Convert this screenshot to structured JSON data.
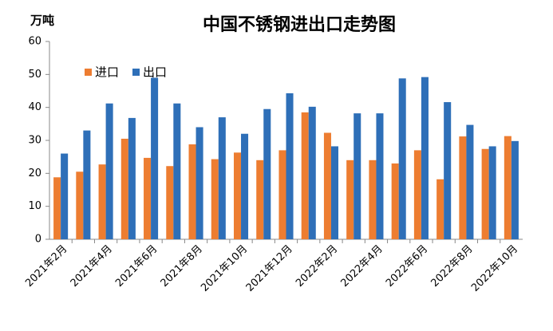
{
  "chart_data": {
    "type": "bar",
    "title": "中国不锈钢进出口走势图",
    "y_unit": "万吨",
    "categories": [
      "2021年2月",
      null,
      "2021年4月",
      null,
      "2021年6月",
      null,
      "2021年8月",
      null,
      "2021年10月",
      null,
      "2021年12月",
      null,
      "2022年2月",
      null,
      "2022年4月",
      null,
      "2022年6月",
      null,
      "2022年8月",
      null,
      "2022年10月"
    ],
    "series": [
      {
        "name": "进口",
        "color": "#ed7d31",
        "values": [
          18.8,
          20.5,
          22.7,
          30.5,
          24.7,
          22.2,
          28.8,
          24.3,
          26.3,
          24,
          27,
          38.5,
          32.3,
          24,
          24,
          23,
          27,
          18.2,
          31.2,
          27.4,
          31.3
        ]
      },
      {
        "name": "出口",
        "color": "#2e6fb8",
        "values": [
          26,
          33,
          41.2,
          36.8,
          49,
          41.2,
          34,
          37,
          32,
          39.5,
          44.3,
          40.2,
          28.2,
          38.2,
          38.2,
          48.8,
          49.2,
          41.6,
          34.7,
          28.2,
          29.8
        ]
      }
    ],
    "ylim": [
      0,
      60
    ],
    "yticks": [
      0,
      10,
      20,
      30,
      40,
      50,
      60
    ],
    "legend": "upper-left"
  }
}
